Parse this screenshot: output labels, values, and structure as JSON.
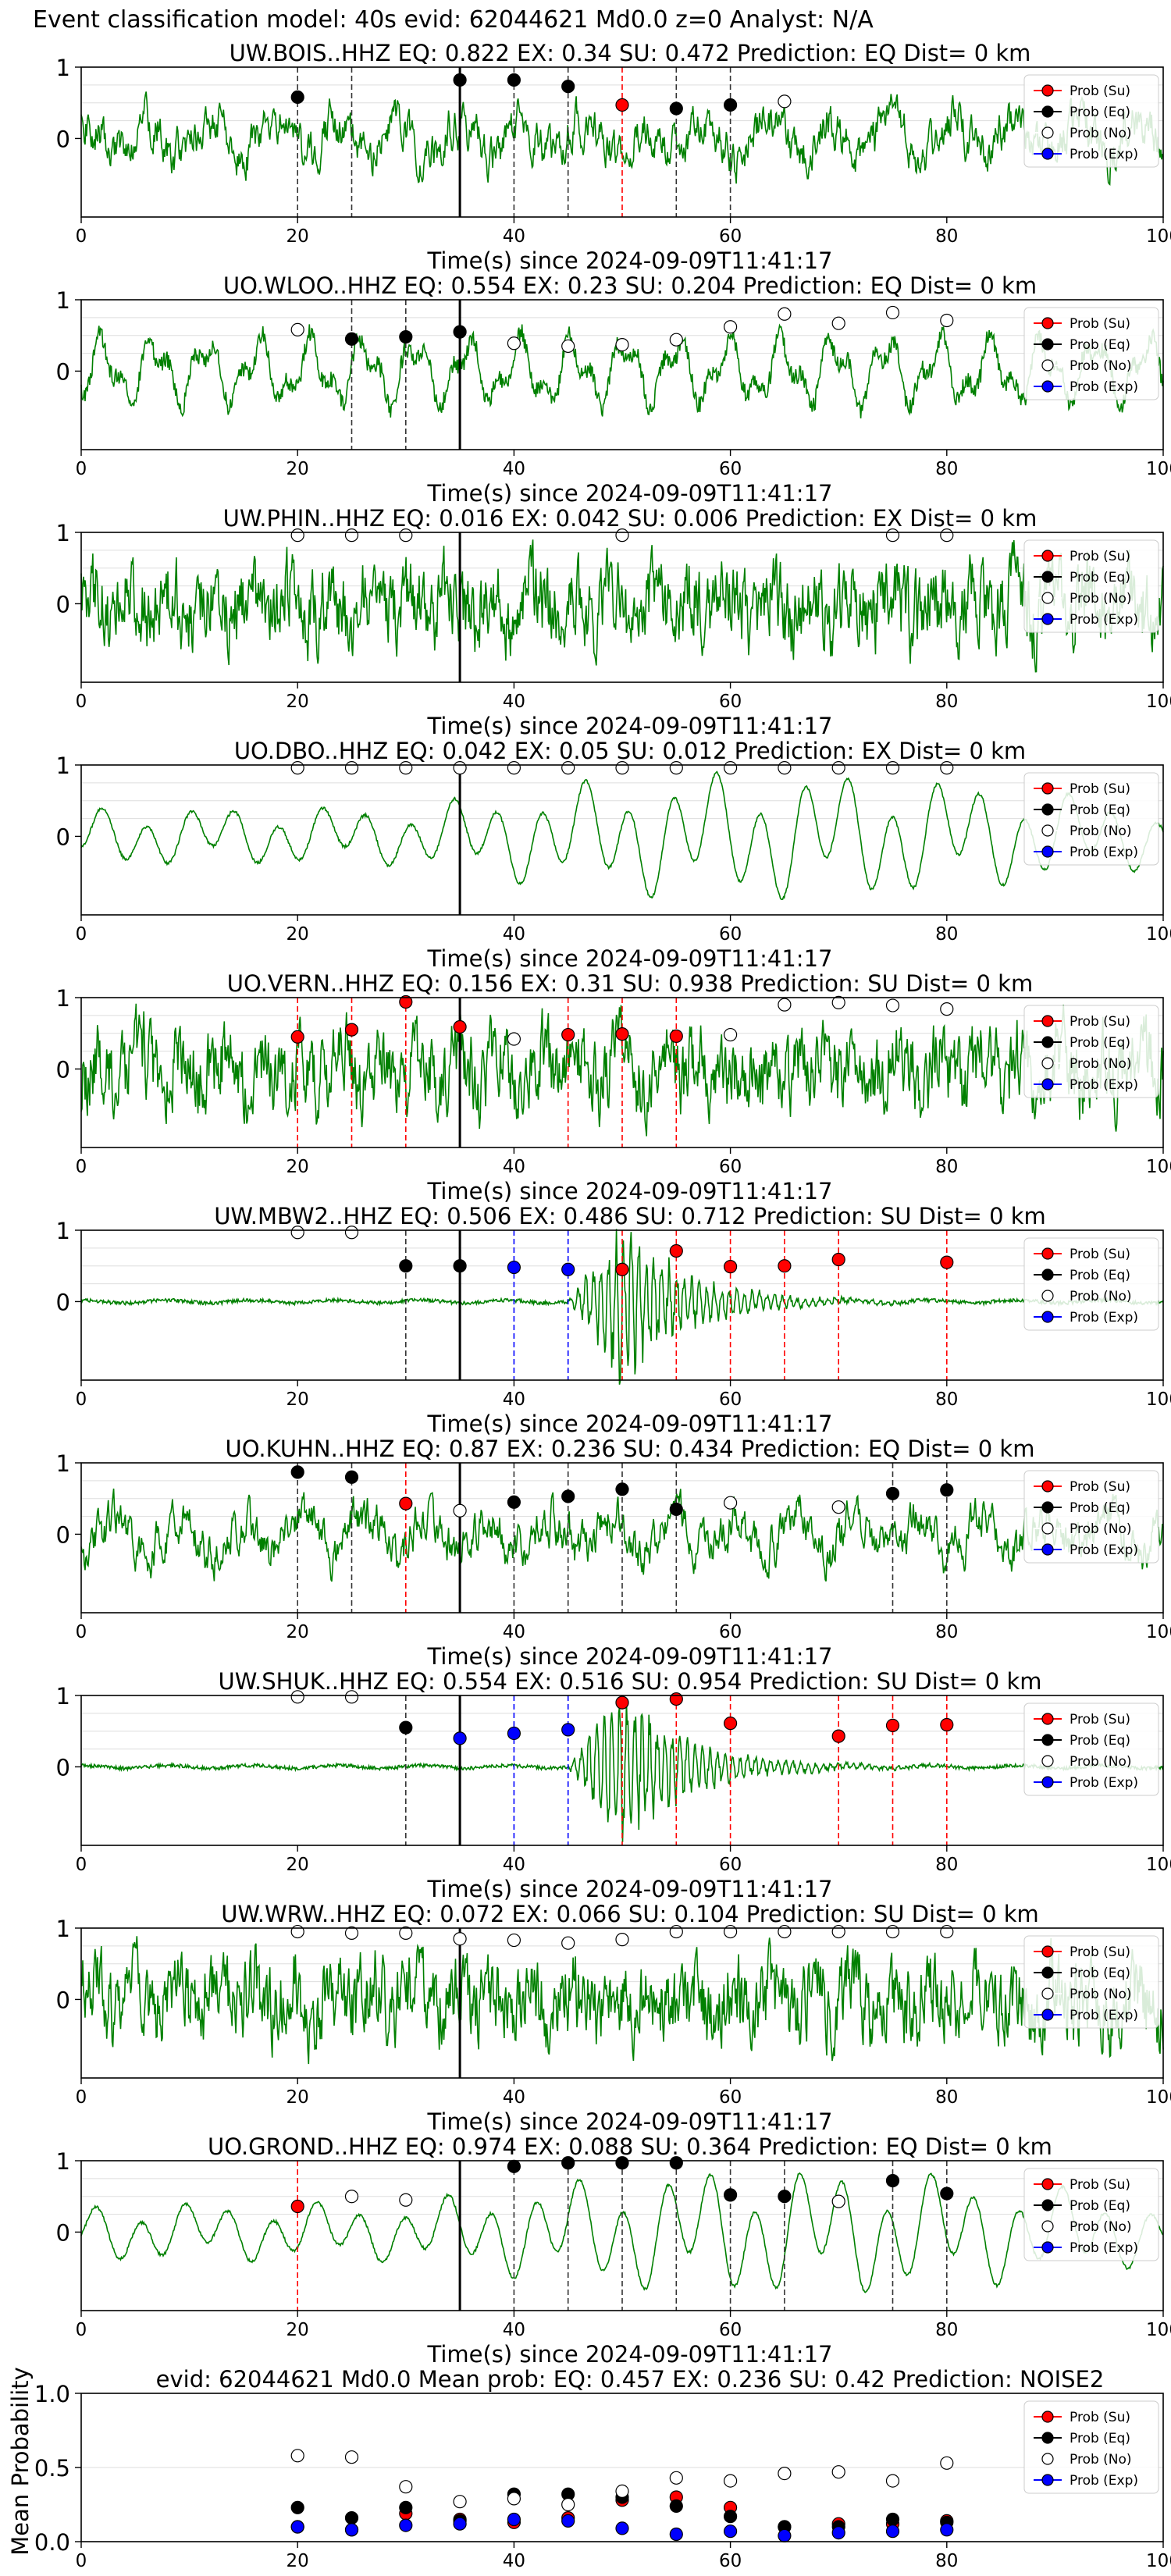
{
  "suptitle": "Event classification model: 40s evid: 62044621 Md0.0 z=0 Analyst: N/A",
  "colors": {
    "waveform": "#008000",
    "su": "#ff0000",
    "eq": "#000000",
    "no": "#ffffff",
    "exp": "#0000ff",
    "pick": "#000000",
    "marker_edge": "#000000",
    "grid": "#dddddd"
  },
  "legend": [
    "Prob (Su)",
    "Prob (Eq)",
    "Prob (No)",
    "Prob (Exp)"
  ],
  "chart_data": [
    {
      "type": "line",
      "title": "UW.BOIS..HHZ   EQ: 0.822  EX: 0.34  SU: 0.472   Prediction: EQ    Dist= 0 km",
      "xlabel": "Time(s) since 2024-09-09T11:41:17",
      "xlim": [
        0,
        100
      ],
      "ylim": [
        -1,
        1
      ],
      "xticks": [
        0,
        20,
        40,
        60,
        80,
        100
      ],
      "yticks": [
        0,
        1
      ],
      "pick_time": 35,
      "waveform": {
        "seed": 1,
        "style": "mixed"
      },
      "windows": [
        {
          "t": 20,
          "c": "eq",
          "p": 0.58
        },
        {
          "t": 25,
          "c": "eq",
          "p": null
        },
        {
          "t": 35,
          "c": "eq",
          "p": 0.82
        },
        {
          "t": 40,
          "c": "eq",
          "p": 0.82
        },
        {
          "t": 45,
          "c": "eq",
          "p": 0.73
        },
        {
          "t": 50,
          "c": "su",
          "p": 0.47
        },
        {
          "t": 55,
          "c": "eq",
          "p": 0.42
        },
        {
          "t": 60,
          "c": "eq",
          "p": 0.47
        },
        {
          "t": 65,
          "c": "no",
          "p": 0.52
        }
      ]
    },
    {
      "type": "line",
      "title": "UO.WLOO..HHZ   EQ: 0.554  EX: 0.23  SU: 0.204   Prediction: EQ    Dist= 0 km",
      "xlabel": "Time(s) since 2024-09-09T11:41:17",
      "xlim": [
        0,
        100
      ],
      "ylim": [
        -1,
        1
      ],
      "xticks": [
        0,
        20,
        40,
        60,
        80,
        100
      ],
      "yticks": [
        0,
        1
      ],
      "pick_time": 35,
      "waveform": {
        "seed": 2,
        "style": "oscill"
      },
      "windows": [
        {
          "t": 20,
          "c": "no",
          "p": 0.58
        },
        {
          "t": 25,
          "c": "eq",
          "p": 0.45
        },
        {
          "t": 30,
          "c": "eq",
          "p": 0.48
        },
        {
          "t": 35,
          "c": "eq",
          "p": 0.55
        },
        {
          "t": 40,
          "c": "no",
          "p": 0.39
        },
        {
          "t": 45,
          "c": "no",
          "p": 0.35
        },
        {
          "t": 50,
          "c": "no",
          "p": 0.37
        },
        {
          "t": 55,
          "c": "no",
          "p": 0.44
        },
        {
          "t": 60,
          "c": "no",
          "p": 0.62
        },
        {
          "t": 65,
          "c": "no",
          "p": 0.8
        },
        {
          "t": 70,
          "c": "no",
          "p": 0.67
        },
        {
          "t": 75,
          "c": "no",
          "p": 0.82
        },
        {
          "t": 80,
          "c": "no",
          "p": 0.71
        }
      ]
    },
    {
      "type": "line",
      "title": "UW.PHIN..HHZ   EQ: 0.016  EX: 0.042  SU: 0.006   Prediction: EX    Dist= 0 km",
      "xlabel": "Time(s) since 2024-09-09T11:41:17",
      "xlim": [
        0,
        100
      ],
      "ylim": [
        -1,
        1
      ],
      "xticks": [
        0,
        20,
        40,
        60,
        80,
        100
      ],
      "yticks": [
        0,
        1
      ],
      "pick_time": 35,
      "waveform": {
        "seed": 3,
        "style": "noisy"
      },
      "windows": [
        {
          "t": 20,
          "c": "no",
          "p": 0.96
        },
        {
          "t": 25,
          "c": "no",
          "p": 0.96
        },
        {
          "t": 30,
          "c": "no",
          "p": 0.96
        },
        {
          "t": 50,
          "c": "no",
          "p": 0.96
        },
        {
          "t": 75,
          "c": "no",
          "p": 0.96
        },
        {
          "t": 80,
          "c": "no",
          "p": 0.96
        }
      ]
    },
    {
      "type": "line",
      "title": "UO.DBO..HHZ   EQ: 0.042  EX: 0.05  SU: 0.012   Prediction: EX    Dist= 0 km",
      "xlabel": "Time(s) since 2024-09-09T11:41:17",
      "xlim": [
        0,
        100
      ],
      "ylim": [
        -1,
        1
      ],
      "xticks": [
        0,
        20,
        40,
        60,
        80,
        100
      ],
      "yticks": [
        0,
        1
      ],
      "pick_time": 35,
      "waveform": {
        "seed": 4,
        "style": "smooth"
      },
      "windows": [
        {
          "t": 20,
          "c": "no",
          "p": 0.96
        },
        {
          "t": 25,
          "c": "no",
          "p": 0.96
        },
        {
          "t": 30,
          "c": "no",
          "p": 0.96
        },
        {
          "t": 35,
          "c": "no",
          "p": 0.96
        },
        {
          "t": 40,
          "c": "no",
          "p": 0.96
        },
        {
          "t": 45,
          "c": "no",
          "p": 0.96
        },
        {
          "t": 50,
          "c": "no",
          "p": 0.96
        },
        {
          "t": 55,
          "c": "no",
          "p": 0.96
        },
        {
          "t": 60,
          "c": "no",
          "p": 0.96
        },
        {
          "t": 65,
          "c": "no",
          "p": 0.96
        },
        {
          "t": 70,
          "c": "no",
          "p": 0.96
        },
        {
          "t": 75,
          "c": "no",
          "p": 0.96
        },
        {
          "t": 80,
          "c": "no",
          "p": 0.96
        }
      ]
    },
    {
      "type": "line",
      "title": "UO.VERN..HHZ   EQ: 0.156  EX: 0.31  SU: 0.938   Prediction: SU    Dist= 0 km",
      "xlabel": "Time(s) since 2024-09-09T11:41:17",
      "xlim": [
        0,
        100
      ],
      "ylim": [
        -1,
        1
      ],
      "xticks": [
        0,
        20,
        40,
        60,
        80,
        100
      ],
      "yticks": [
        0,
        1
      ],
      "pick_time": 35,
      "waveform": {
        "seed": 5,
        "style": "noisy"
      },
      "windows": [
        {
          "t": 20,
          "c": "su",
          "p": 0.45
        },
        {
          "t": 25,
          "c": "su",
          "p": 0.55
        },
        {
          "t": 30,
          "c": "su",
          "p": 0.94
        },
        {
          "t": 35,
          "c": "su",
          "p": 0.59
        },
        {
          "t": 40,
          "c": "no",
          "p": 0.42
        },
        {
          "t": 45,
          "c": "su",
          "p": 0.48
        },
        {
          "t": 50,
          "c": "su",
          "p": 0.49
        },
        {
          "t": 55,
          "c": "su",
          "p": 0.46
        },
        {
          "t": 60,
          "c": "no",
          "p": 0.48
        },
        {
          "t": 65,
          "c": "no",
          "p": 0.9
        },
        {
          "t": 70,
          "c": "no",
          "p": 0.93
        },
        {
          "t": 75,
          "c": "no",
          "p": 0.89
        },
        {
          "t": 80,
          "c": "no",
          "p": 0.84
        }
      ]
    },
    {
      "type": "line",
      "title": "UW.MBW2..HHZ   EQ: 0.506  EX: 0.486  SU: 0.712   Prediction: SU    Dist= 0 km",
      "xlabel": "Time(s) since 2024-09-09T11:41:17",
      "xlim": [
        0,
        100
      ],
      "ylim": [
        -1,
        1
      ],
      "xticks": [
        0,
        20,
        40,
        60,
        80,
        100
      ],
      "yticks": [
        0,
        1
      ],
      "pick_time": 35,
      "waveform": {
        "seed": 6,
        "style": "event"
      },
      "windows": [
        {
          "t": 20,
          "c": "no",
          "p": 0.97
        },
        {
          "t": 25,
          "c": "no",
          "p": 0.97
        },
        {
          "t": 30,
          "c": "eq",
          "p": 0.5
        },
        {
          "t": 35,
          "c": "eq",
          "p": 0.5
        },
        {
          "t": 40,
          "c": "exp",
          "p": 0.48
        },
        {
          "t": 45,
          "c": "exp",
          "p": 0.45
        },
        {
          "t": 50,
          "c": "su",
          "p": 0.45
        },
        {
          "t": 55,
          "c": "su",
          "p": 0.71
        },
        {
          "t": 60,
          "c": "su",
          "p": 0.49
        },
        {
          "t": 65,
          "c": "su",
          "p": 0.5
        },
        {
          "t": 70,
          "c": "su",
          "p": 0.59
        },
        {
          "t": 80,
          "c": "su",
          "p": 0.55
        }
      ]
    },
    {
      "type": "line",
      "title": "UO.KUHN..HHZ   EQ: 0.87  EX: 0.236  SU: 0.434   Prediction: EQ    Dist= 0 km",
      "xlabel": "Time(s) since 2024-09-09T11:41:17",
      "xlim": [
        0,
        100
      ],
      "ylim": [
        -1,
        1
      ],
      "xticks": [
        0,
        20,
        40,
        60,
        80,
        100
      ],
      "yticks": [
        0,
        1
      ],
      "pick_time": 35,
      "waveform": {
        "seed": 7,
        "style": "mixed"
      },
      "windows": [
        {
          "t": 20,
          "c": "eq",
          "p": 0.87
        },
        {
          "t": 25,
          "c": "eq",
          "p": 0.8
        },
        {
          "t": 30,
          "c": "su",
          "p": 0.43
        },
        {
          "t": 35,
          "c": "no",
          "p": 0.33
        },
        {
          "t": 40,
          "c": "eq",
          "p": 0.45
        },
        {
          "t": 45,
          "c": "eq",
          "p": 0.53
        },
        {
          "t": 50,
          "c": "eq",
          "p": 0.63
        },
        {
          "t": 55,
          "c": "eq",
          "p": 0.35
        },
        {
          "t": 60,
          "c": "no",
          "p": 0.44
        },
        {
          "t": 70,
          "c": "no",
          "p": 0.38
        },
        {
          "t": 75,
          "c": "eq",
          "p": 0.57
        },
        {
          "t": 80,
          "c": "eq",
          "p": 0.62
        }
      ]
    },
    {
      "type": "line",
      "title": "UW.SHUK..HHZ   EQ: 0.554  EX: 0.516  SU: 0.954   Prediction: SU    Dist= 0 km",
      "xlabel": "Time(s) since 2024-09-09T11:41:17",
      "xlim": [
        0,
        100
      ],
      "ylim": [
        -1,
        1
      ],
      "xticks": [
        0,
        20,
        40,
        60,
        80,
        100
      ],
      "yticks": [
        0,
        1
      ],
      "pick_time": 35,
      "waveform": {
        "seed": 8,
        "style": "event"
      },
      "windows": [
        {
          "t": 20,
          "c": "no",
          "p": 0.98
        },
        {
          "t": 25,
          "c": "no",
          "p": 0.98
        },
        {
          "t": 30,
          "c": "eq",
          "p": 0.55
        },
        {
          "t": 35,
          "c": "exp",
          "p": 0.4
        },
        {
          "t": 40,
          "c": "exp",
          "p": 0.47
        },
        {
          "t": 45,
          "c": "exp",
          "p": 0.52
        },
        {
          "t": 50,
          "c": "su",
          "p": 0.9
        },
        {
          "t": 55,
          "c": "su",
          "p": 0.95
        },
        {
          "t": 60,
          "c": "su",
          "p": 0.61
        },
        {
          "t": 70,
          "c": "su",
          "p": 0.43
        },
        {
          "t": 75,
          "c": "su",
          "p": 0.58
        },
        {
          "t": 80,
          "c": "su",
          "p": 0.59
        }
      ]
    },
    {
      "type": "line",
      "title": "UW.WRW..HHZ   EQ: 0.072  EX: 0.066  SU: 0.104   Prediction: SU    Dist= 0 km",
      "xlabel": "Time(s) since 2024-09-09T11:41:17",
      "xlim": [
        0,
        100
      ],
      "ylim": [
        -1,
        1
      ],
      "xticks": [
        0,
        20,
        40,
        60,
        80,
        100
      ],
      "yticks": [
        0,
        1
      ],
      "pick_time": 35,
      "waveform": {
        "seed": 9,
        "style": "noisy"
      },
      "windows": [
        {
          "t": 20,
          "c": "no",
          "p": 0.95
        },
        {
          "t": 25,
          "c": "no",
          "p": 0.93
        },
        {
          "t": 30,
          "c": "no",
          "p": 0.93
        },
        {
          "t": 35,
          "c": "no",
          "p": 0.85
        },
        {
          "t": 40,
          "c": "no",
          "p": 0.83
        },
        {
          "t": 45,
          "c": "no",
          "p": 0.79
        },
        {
          "t": 50,
          "c": "no",
          "p": 0.84
        },
        {
          "t": 55,
          "c": "no",
          "p": 0.95
        },
        {
          "t": 60,
          "c": "no",
          "p": 0.95
        },
        {
          "t": 65,
          "c": "no",
          "p": 0.95
        },
        {
          "t": 70,
          "c": "no",
          "p": 0.95
        },
        {
          "t": 75,
          "c": "no",
          "p": 0.95
        },
        {
          "t": 80,
          "c": "no",
          "p": 0.95
        }
      ]
    },
    {
      "type": "line",
      "title": "UO.GROND..HHZ   EQ: 0.974  EX: 0.088  SU: 0.364   Prediction: EQ    Dist= 0 km",
      "xlabel": "Time(s) since 2024-09-09T11:41:17",
      "xlim": [
        0,
        100
      ],
      "ylim": [
        -1,
        1
      ],
      "xticks": [
        0,
        20,
        40,
        60,
        80,
        100
      ],
      "yticks": [
        0,
        1
      ],
      "pick_time": 35,
      "waveform": {
        "seed": 10,
        "style": "smooth"
      },
      "windows": [
        {
          "t": 20,
          "c": "su",
          "p": 0.36
        },
        {
          "t": 25,
          "c": "no",
          "p": 0.5
        },
        {
          "t": 30,
          "c": "no",
          "p": 0.45
        },
        {
          "t": 40,
          "c": "eq",
          "p": 0.92
        },
        {
          "t": 45,
          "c": "eq",
          "p": 0.97
        },
        {
          "t": 50,
          "c": "eq",
          "p": 0.97
        },
        {
          "t": 55,
          "c": "eq",
          "p": 0.97
        },
        {
          "t": 60,
          "c": "eq",
          "p": 0.52
        },
        {
          "t": 65,
          "c": "eq",
          "p": 0.5
        },
        {
          "t": 70,
          "c": "no",
          "p": 0.43
        },
        {
          "t": 75,
          "c": "eq",
          "p": 0.72
        },
        {
          "t": 80,
          "c": "eq",
          "p": 0.54
        }
      ]
    },
    {
      "type": "scatter",
      "title": "evid: 62044621   Md0.0   Mean prob:   EQ: 0.457  EX: 0.236  SU: 0.42   Prediction: NOISE2",
      "ylabel": "Mean Probability",
      "xlim": [
        0,
        100
      ],
      "ylim": [
        0,
        1
      ],
      "xticks": [
        0,
        20,
        40,
        60,
        80,
        100
      ],
      "yticks": [
        0.0,
        0.5,
        1.0
      ],
      "yticklabels": [
        "0.0",
        "0.5",
        "1.0"
      ],
      "x": [
        20,
        25,
        30,
        35,
        40,
        45,
        50,
        55,
        60,
        65,
        70,
        75,
        80
      ],
      "series": [
        {
          "name": "Prob (Su)",
          "c": "su",
          "values": [
            0.1,
            0.08,
            0.19,
            0.15,
            0.13,
            0.16,
            0.28,
            0.3,
            0.23,
            0.1,
            0.12,
            0.12,
            0.14
          ]
        },
        {
          "name": "Prob (Eq)",
          "c": "eq",
          "values": [
            0.23,
            0.16,
            0.23,
            0.14,
            0.32,
            0.32,
            0.3,
            0.24,
            0.17,
            0.1,
            0.1,
            0.15,
            0.13
          ]
        },
        {
          "name": "Prob (No)",
          "c": "no",
          "values": [
            0.58,
            0.57,
            0.37,
            0.27,
            0.29,
            0.25,
            0.34,
            0.43,
            0.41,
            0.46,
            0.47,
            0.41,
            0.53
          ]
        },
        {
          "name": "Prob (Exp)",
          "c": "exp",
          "values": [
            0.1,
            0.08,
            0.11,
            0.12,
            0.15,
            0.14,
            0.09,
            0.05,
            0.07,
            0.04,
            0.06,
            0.07,
            0.08
          ]
        }
      ]
    }
  ]
}
